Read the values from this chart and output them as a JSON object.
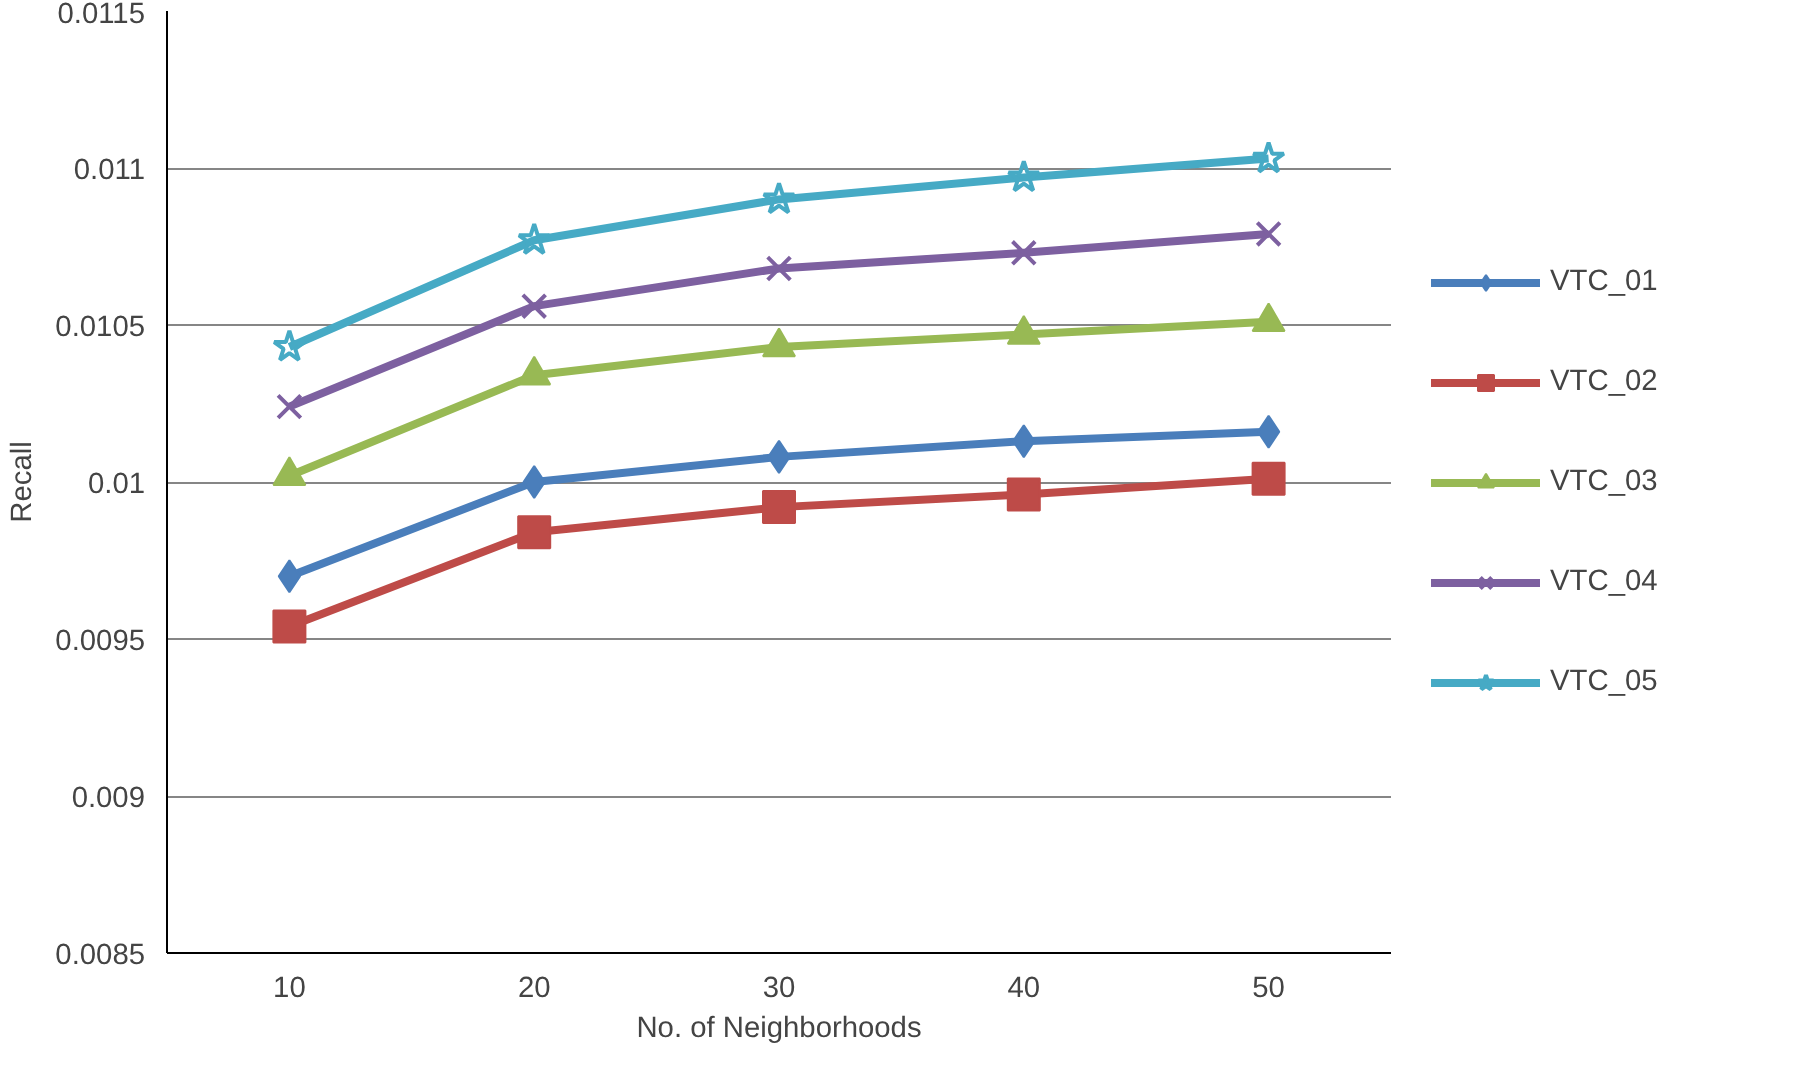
{
  "chart_data": {
    "type": "line",
    "xlabel": "No. of Neighborhoods",
    "ylabel": "Recall",
    "categories": [
      "10",
      "20",
      "30",
      "40",
      "50"
    ],
    "series": [
      {
        "name": "VTC_01",
        "color": "#4a7ebb",
        "marker": "diamond",
        "values": [
          0.0097,
          0.01,
          0.01008,
          0.01013,
          0.01016
        ]
      },
      {
        "name": "VTC_02",
        "color": "#be4b48",
        "marker": "square",
        "values": [
          0.00954,
          0.00984,
          0.00992,
          0.00996,
          0.01001
        ]
      },
      {
        "name": "VTC_03",
        "color": "#98b954",
        "marker": "triangle",
        "values": [
          0.01002,
          0.01034,
          0.01043,
          0.01047,
          0.01051
        ]
      },
      {
        "name": "VTC_04",
        "color": "#7d60a0",
        "marker": "cross",
        "values": [
          0.01024,
          0.01056,
          0.01068,
          0.01073,
          0.01079
        ]
      },
      {
        "name": "VTC_05",
        "color": "#46aac5",
        "marker": "star",
        "values": [
          0.01043,
          0.01077,
          0.0109,
          0.01097,
          0.01103
        ]
      }
    ],
    "ylim": [
      0.0085,
      0.0115
    ],
    "yticks": [
      0.0085,
      0.009,
      0.0095,
      0.01,
      0.0105,
      0.011,
      0.0115
    ],
    "grid": "y",
    "legend": "right",
    "line_style": "solid"
  }
}
